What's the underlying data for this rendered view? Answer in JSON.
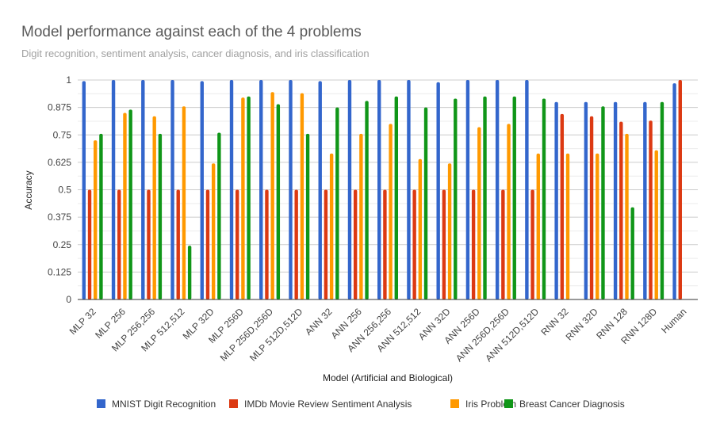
{
  "chart_data": {
    "type": "bar",
    "title": "Model performance against each of the 4 problems",
    "subtitle": "Digit recognition, sentiment analysis, cancer diagnosis, and iris classification",
    "xlabel": "Model (Artificial and Biological)",
    "ylabel": "Accuracy",
    "ylim": [
      0,
      1
    ],
    "yticks": [
      "0",
      "0.125",
      "0.25",
      "0.375",
      "0.5",
      "0.625",
      "0.75",
      "0.875",
      "1"
    ],
    "grid": true,
    "legend_position": "bottom",
    "categories": [
      "MLP 32",
      "MLP 256",
      "MLP 256,256",
      "MLP 512,512",
      "MLP 32D",
      "MLP 256D",
      "MLP 256D,256D",
      "MLP 512D,512D",
      "ANN 32",
      "ANN 256",
      "ANN 256,256",
      "ANN 512,512",
      "ANN 32D",
      "ANN 256D",
      "ANN 256D,256D",
      "ANN 512D,512D",
      "RNN 32",
      "RNN 32D",
      "RNN 128",
      "RNN 128D",
      "Human"
    ],
    "series": [
      {
        "name": "MNIST Digit Recognition",
        "color": "#3366cc",
        "values": [
          0.995,
          1.0,
          1.0,
          1.0,
          0.995,
          1.0,
          1.0,
          1.0,
          0.995,
          1.0,
          1.0,
          1.0,
          0.99,
          1.0,
          1.0,
          1.0,
          0.9,
          0.9,
          0.9,
          0.9,
          0.985
        ]
      },
      {
        "name": "IMDb Movie Review Sentiment Analysis",
        "color": "#dc3912",
        "values": [
          0.5,
          0.5,
          0.5,
          0.5,
          0.5,
          0.5,
          0.5,
          0.5,
          0.5,
          0.5,
          0.5,
          0.5,
          0.5,
          0.5,
          0.5,
          0.5,
          0.845,
          0.835,
          0.81,
          0.815,
          1.0
        ]
      },
      {
        "name": "Iris Problem",
        "color": "#ff9900",
        "values": [
          0.725,
          0.85,
          0.835,
          0.88,
          0.62,
          0.92,
          0.945,
          0.94,
          0.665,
          0.755,
          0.8,
          0.64,
          0.62,
          0.785,
          0.8,
          0.665,
          0.665,
          0.665,
          0.755,
          0.68,
          null
        ]
      },
      {
        "name": "Breast Cancer Diagnosis",
        "color": "#109618",
        "values": [
          0.755,
          0.865,
          0.755,
          0.245,
          0.76,
          0.925,
          0.89,
          0.755,
          0.875,
          0.905,
          0.925,
          0.875,
          0.915,
          0.925,
          0.925,
          0.915,
          null,
          0.88,
          0.42,
          0.9,
          null
        ]
      }
    ]
  }
}
